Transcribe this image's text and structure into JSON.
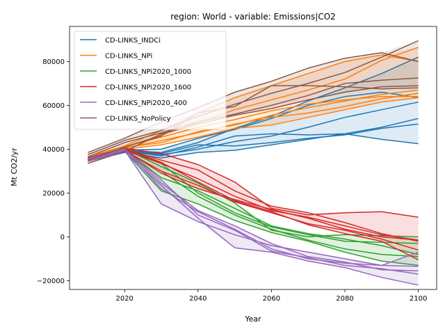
{
  "chart_data": {
    "type": "line",
    "title": "region: World - variable: Emissions|CO2",
    "xlabel": "Year",
    "ylabel": "Mt CO2/yr",
    "xlim": [
      2005,
      2105
    ],
    "ylim": [
      -24000,
      96000
    ],
    "xticks": [
      2020,
      2040,
      2060,
      2080,
      2100
    ],
    "yticks": [
      -20000,
      0,
      20000,
      40000,
      60000,
      80000
    ],
    "ytick_labels": [
      "−20000",
      "0",
      "20000",
      "40000",
      "60000",
      "80000"
    ],
    "grid": false,
    "legend": "upper-left",
    "x": [
      2010,
      2020,
      2030,
      2040,
      2050,
      2060,
      2070,
      2080,
      2090,
      2100
    ],
    "series": [
      {
        "name": "CD-LINKS_INDCi",
        "color": "#1f77b4",
        "lines": [
          [
            35500,
            39500,
            38500,
            43000,
            49500,
            55000,
            62000,
            68000,
            74500,
            82000
          ],
          [
            35000,
            39000,
            37000,
            41000,
            46000,
            47000,
            46500,
            47000,
            44500,
            42500
          ],
          [
            34500,
            38500,
            36000,
            38500,
            39500,
            42000,
            44500,
            47000,
            50000,
            54000
          ],
          [
            35000,
            39000,
            37500,
            40000,
            43500,
            46000,
            50000,
            54500,
            58000,
            61500
          ],
          [
            35300,
            39200,
            38000,
            42000,
            41500,
            43000,
            45000,
            46500,
            49500,
            51500
          ],
          [
            35600,
            39600,
            40000,
            45000,
            49000,
            54000,
            60000,
            64000,
            66000,
            63500
          ]
        ]
      },
      {
        "name": "CD-LINKS_NPi",
        "color": "#ff7f0e",
        "lines": [
          [
            36500,
            41500,
            48500,
            56500,
            63500,
            69000,
            74500,
            80000,
            83000,
            80000
          ],
          [
            36000,
            41000,
            46500,
            52000,
            58000,
            62500,
            67000,
            72000,
            80500,
            86500
          ],
          [
            35500,
            40500,
            44000,
            47500,
            51500,
            54500,
            56500,
            59500,
            63000,
            65500
          ],
          [
            35000,
            40000,
            42000,
            45500,
            49500,
            51000,
            54500,
            58000,
            61500,
            63500
          ],
          [
            36200,
            41200,
            45500,
            50000,
            53500,
            57500,
            60500,
            62500,
            64000,
            64000
          ],
          [
            35800,
            40800,
            43000,
            48000,
            51000,
            55500,
            59000,
            62000,
            65000,
            67000
          ]
        ]
      },
      {
        "name": "CD-LINKS_NPi2020_1000",
        "color": "#2ca02c",
        "lines": [
          [
            35500,
            40000,
            33500,
            20000,
            11000,
            4500,
            1000,
            -2000,
            -2500,
            -3000
          ],
          [
            35000,
            39500,
            30000,
            18500,
            10000,
            3500,
            -1500,
            -5500,
            -8000,
            -9000
          ],
          [
            34500,
            39000,
            21000,
            15000,
            7500,
            2000,
            -2000,
            -7000,
            -11000,
            -13000
          ],
          [
            35300,
            39800,
            27000,
            21000,
            13000,
            5000,
            1500,
            -1000,
            -4000,
            -8000
          ],
          [
            35700,
            40200,
            32000,
            24500,
            15500,
            3000,
            0,
            1000,
            500,
            0
          ]
        ]
      },
      {
        "name": "CD-LINKS_NPi2020_1600",
        "color": "#d62728",
        "lines": [
          [
            36000,
            40500,
            38000,
            33000,
            25000,
            13000,
            10000,
            11000,
            11500,
            9000
          ],
          [
            35500,
            40000,
            35000,
            30500,
            21000,
            14000,
            11000,
            6500,
            1500,
            -2000
          ],
          [
            35000,
            39500,
            33500,
            26500,
            18500,
            12000,
            9000,
            5000,
            1000,
            -1500
          ],
          [
            34500,
            39000,
            30000,
            23500,
            16000,
            11000,
            6000,
            3000,
            -1000,
            -6000
          ],
          [
            35200,
            39700,
            29000,
            22000,
            17000,
            12500,
            8500,
            3500,
            0,
            -1500
          ],
          [
            35800,
            40300,
            34000,
            25000,
            16500,
            11500,
            5500,
            1500,
            -2000,
            -10500
          ]
        ]
      },
      {
        "name": "CD-LINKS_NPi2020_400",
        "color": "#9467bd",
        "lines": [
          [
            35500,
            40000,
            24500,
            12000,
            5000,
            -3000,
            -9000,
            -11500,
            -15000,
            -15500
          ],
          [
            35000,
            39500,
            15000,
            7000,
            1000,
            -4000,
            -7000,
            -10000,
            -13000,
            -13500
          ],
          [
            34500,
            39000,
            23500,
            8500,
            -5000,
            -7000,
            -11000,
            -14000,
            -18500,
            -22000
          ],
          [
            35300,
            39800,
            26000,
            10000,
            3000,
            -6500,
            -9500,
            -13000,
            -14500,
            -17000
          ],
          [
            35700,
            40200,
            22000,
            11500,
            3500,
            -5500,
            -10000,
            -12000,
            -13000,
            -7000
          ]
        ]
      },
      {
        "name": "CD-LINKS_NoPolicy",
        "color": "#8c564b",
        "lines": [
          [
            38500,
            45000,
            52500,
            59000,
            66000,
            71000,
            77000,
            81500,
            84000,
            80000
          ],
          [
            37500,
            44000,
            48500,
            55000,
            60500,
            65500,
            70000,
            75000,
            82000,
            89500
          ],
          [
            36500,
            43000,
            47500,
            52500,
            56000,
            60000,
            64500,
            70000,
            71500,
            72500
          ],
          [
            33500,
            39000,
            47000,
            51500,
            55500,
            58500,
            62500,
            66000,
            68500,
            69000
          ],
          [
            35000,
            41000,
            46000,
            56500,
            59500,
            69000,
            69000,
            68500,
            67500,
            68000
          ]
        ]
      }
    ]
  }
}
